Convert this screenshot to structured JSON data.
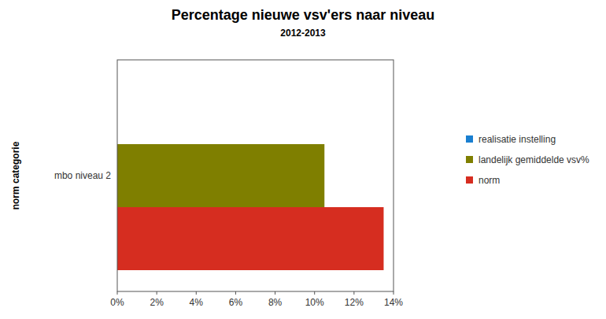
{
  "chart_data": {
    "type": "bar",
    "orientation": "horizontal",
    "title": "Percentage nieuwe vsv'ers naar niveau",
    "subtitle": "2012-2013",
    "y_label": "norm categorie",
    "categories": [
      "mbo niveau 2"
    ],
    "series": [
      {
        "name": "realisatie instelling",
        "color": "#1a7fd0",
        "values": [
          null
        ]
      },
      {
        "name": "landelijk gemiddelde vsv%",
        "color": "#7f7f00",
        "values": [
          10.5
        ]
      },
      {
        "name": "norm",
        "color": "#d62d20",
        "values": [
          13.5
        ]
      }
    ],
    "xlim": [
      0,
      14
    ],
    "xticks": [
      {
        "value": 0,
        "label": "0%"
      },
      {
        "value": 2,
        "label": "2%"
      },
      {
        "value": 4,
        "label": "4%"
      },
      {
        "value": 6,
        "label": "6%"
      },
      {
        "value": 8,
        "label": "8%"
      },
      {
        "value": 10,
        "label": "10%"
      },
      {
        "value": 12,
        "label": "12%"
      },
      {
        "value": 14,
        "label": "14%"
      }
    ],
    "grid": false,
    "legend": "right"
  }
}
